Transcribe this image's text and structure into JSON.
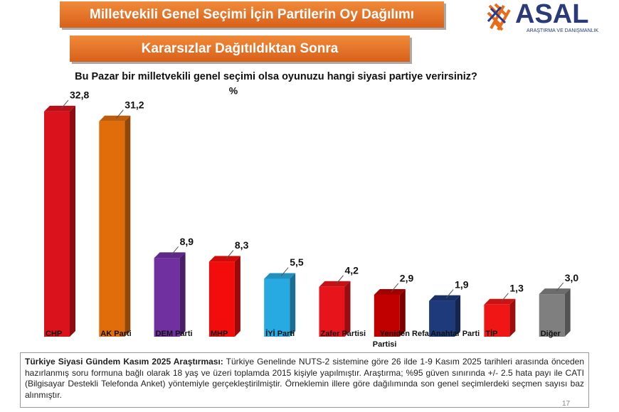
{
  "chart_data": {
    "type": "bar3d",
    "title": "Milletvekili Genel Seçimi İçin Partilerin Oy Dağılımı",
    "subtitle": "Kararsızlar Dağıtıldıktan Sonra",
    "question": "Bu Pazar bir milletvekili genel seçimi olsa oyunuzu hangi siyasi partiye verirsiniz?",
    "unit": "%",
    "categories": [
      "CHP",
      "AK Parti",
      "DEM Parti",
      "MHP",
      "İYİ Parti",
      "Zafer Partisi",
      "Yeniden Refah Partisi",
      "Anahtar Parti",
      "TİP",
      "Diğer"
    ],
    "values": [
      32.8,
      31.2,
      8.9,
      8.3,
      5.5,
      4.2,
      2.9,
      1.9,
      1.3,
      3.0
    ],
    "value_labels": [
      "32,8",
      "31,2",
      "8,9",
      "8,3",
      "5,5",
      "4,2",
      "2,9",
      "1,9",
      "1,3",
      "3,0"
    ],
    "colors": [
      "#d9121c",
      "#e06c0a",
      "#7030a0",
      "#f20c0c",
      "#27a9e1",
      "#e8141c",
      "#c00000",
      "#1f3a7a",
      "#f01616",
      "#7f7f7f"
    ]
  },
  "logo": {
    "name": "ASAL",
    "tagline": "ARAŞTIRMA VE DANIŞMANLIK"
  },
  "note": {
    "lead": "Türkiye Siyasi Gündem Kasım 2025 Araştırması:",
    "text": "Türkiye Genelinde NUTS-2 sistemine göre 26 ilde 1-9 Kasım 2025 tarihleri arasında önceden hazırlanmış soru formuna bağlı olarak 18 yaş ve üzeri toplamda 2015 kişiyle yapılmıştır. Araştırma; %95 güven sınırında +/- 2.5 hata payı ile CATI (Bilgisayar Destekli Telefonda Anket) yöntemiyle gerçekleştirilmiştir. Örneklemin illere göre dağılımında son genel seçimlerdeki seçmen sayısı baz alınmıştır."
  },
  "page_number": "17"
}
